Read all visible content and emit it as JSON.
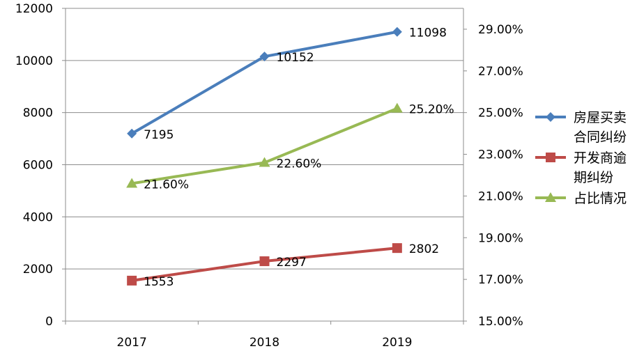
{
  "chart_data": {
    "type": "line",
    "title": "",
    "categories": [
      "2017",
      "2018",
      "2019"
    ],
    "grid": true,
    "legend_position": "right",
    "y_left": {
      "ylim": [
        0,
        12000
      ],
      "ticks": [
        "0",
        "2000",
        "4000",
        "6000",
        "8000",
        "10000",
        "12000"
      ]
    },
    "y_right": {
      "ylim": [
        0.15,
        0.3
      ],
      "ticks": [
        "15.00%",
        "17.00%",
        "19.00%",
        "21.00%",
        "23.00%",
        "25.00%",
        "27.00%",
        "29.00%"
      ]
    },
    "series": [
      {
        "name": "房屋买卖合同纠纷",
        "legend_lines": [
          "房屋买卖",
          "合同纠纷"
        ],
        "axis": "left",
        "values": [
          7195,
          10152,
          11098
        ],
        "labels": [
          "7195",
          "10152",
          "11098"
        ],
        "color": "#4a7ebb",
        "marker": "diamond"
      },
      {
        "name": "开发商逾期纠纷",
        "legend_lines": [
          "开发商逾",
          "期纠纷"
        ],
        "axis": "left",
        "values": [
          1553,
          2297,
          2802
        ],
        "labels": [
          "1553",
          "2297",
          "2802"
        ],
        "color": "#be4b48",
        "marker": "square"
      },
      {
        "name": "占比情况",
        "legend_lines": [
          "占比情况"
        ],
        "axis": "right",
        "values": [
          0.216,
          0.226,
          0.252
        ],
        "labels": [
          "21.60%",
          "22.60%",
          "25.20%"
        ],
        "color": "#98b954",
        "marker": "triangle"
      }
    ]
  }
}
